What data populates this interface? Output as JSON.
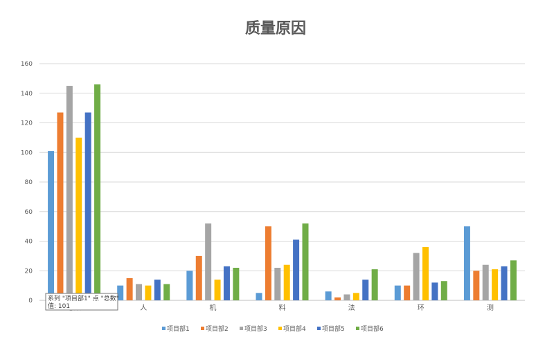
{
  "chart_data": {
    "type": "bar",
    "title": "质量原因",
    "xlabel": "",
    "ylabel": "",
    "categories": [
      "总数",
      "人",
      "机",
      "料",
      "法",
      "环",
      "测"
    ],
    "ylim": [
      0,
      160
    ],
    "yticks": [
      0,
      20,
      40,
      60,
      80,
      100,
      120,
      140,
      160
    ],
    "grid": true,
    "legend_position": "bottom",
    "series": [
      {
        "name": "项目部1",
        "color": "#5B9BD5",
        "values": [
          101,
          10,
          20,
          5,
          6,
          10,
          50
        ]
      },
      {
        "name": "项目部2",
        "color": "#ED7D31",
        "values": [
          127,
          15,
          30,
          50,
          2,
          10,
          20
        ]
      },
      {
        "name": "项目部3",
        "color": "#A5A5A5",
        "values": [
          145,
          11,
          52,
          22,
          4,
          32,
          24
        ]
      },
      {
        "name": "项目部4",
        "color": "#FFC000",
        "values": [
          110,
          10,
          14,
          24,
          5,
          36,
          21
        ]
      },
      {
        "name": "项目部5",
        "color": "#4472C4",
        "values": [
          127,
          14,
          23,
          41,
          14,
          12,
          23
        ]
      },
      {
        "name": "项目部6",
        "color": "#70AD47",
        "values": [
          146,
          11,
          22,
          52,
          21,
          13,
          27
        ]
      }
    ]
  },
  "tooltip": {
    "line1": "系列 \"项目部1\" 点 \"总数\"",
    "line2": "值: 101"
  }
}
